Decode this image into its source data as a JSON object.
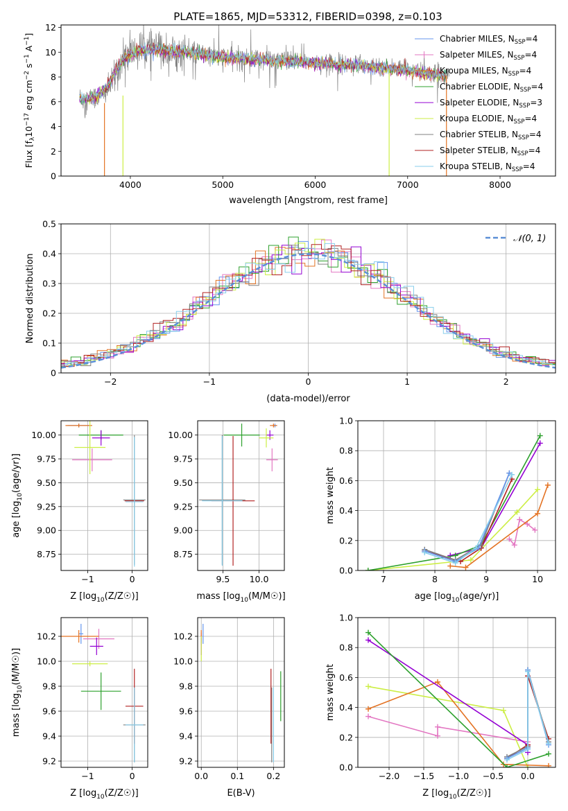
{
  "figure_title": "PLATE=1865, MJD=53312, FIBERID=0398, z=0.103",
  "colors": {
    "chabrier_miles": "#6495ed",
    "salpeter_miles": "#e377c2",
    "kroupa_miles": "#e37222",
    "chabrier_elodie": "#2ca02c",
    "salpeter_elodie": "#9400d3",
    "kroupa_elodie": "#ccee44",
    "chabrier_stelib": "#808080",
    "salpeter_stelib": "#b22222",
    "kroupa_stelib": "#87ceeb",
    "normal": "#5b8fd6"
  },
  "chart_data": [
    {
      "id": "spectrum",
      "type": "line",
      "title": "PLATE=1865, MJD=53312, FIBERID=0398, z=0.103",
      "xlabel": "wavelength [Angstrom, rest frame]",
      "ylabel": "Flux [f_λ 10^-17 erg cm^-2 s^-1 A^-1]",
      "xlim": [
        3250,
        8600
      ],
      "ylim": [
        0,
        12.2
      ],
      "xticks": [
        4000,
        5000,
        6000,
        7000,
        8000
      ],
      "yticks": [
        0,
        2,
        4,
        6,
        8,
        10,
        12
      ],
      "legend_position": "right",
      "series": [
        {
          "name": "Chabrier MILES, N_SSP=4",
          "label_main": "Chabrier MILES, N",
          "label_sub": "SSP",
          "label_end": "=4",
          "color_key": "chabrier_miles"
        },
        {
          "name": "Salpeter MILES, N_SSP=4",
          "label_main": "Salpeter MILES, N",
          "label_sub": "SSP",
          "label_end": "=4",
          "color_key": "salpeter_miles"
        },
        {
          "name": "Kroupa MILES, N_SSP=4",
          "label_main": "Kroupa MILES, N",
          "label_sub": "SSP",
          "label_end": "=4",
          "color_key": "kroupa_miles"
        },
        {
          "name": "Chabrier ELODIE, N_SSP=4",
          "label_main": "Chabrier ELODIE, N",
          "label_sub": "SSP",
          "label_end": "=4",
          "color_key": "chabrier_elodie"
        },
        {
          "name": "Salpeter ELODIE, N_SSP=3",
          "label_main": "Salpeter ELODIE, N",
          "label_sub": "SSP",
          "label_end": "=3",
          "color_key": "salpeter_elodie"
        },
        {
          "name": "Kroupa ELODIE, N_SSP=4",
          "label_main": "Kroupa ELODIE, N",
          "label_sub": "SSP",
          "label_end": "=4",
          "color_key": "kroupa_elodie"
        },
        {
          "name": "Chabrier STELIB, N_SSP=4",
          "label_main": "Chabrier STELIB, N",
          "label_sub": "SSP",
          "label_end": "=4",
          "color_key": "chabrier_stelib"
        },
        {
          "name": "Salpeter STELIB, N_SSP=4",
          "label_main": "Salpeter STELIB, N",
          "label_sub": "SSP",
          "label_end": "=4",
          "color_key": "salpeter_stelib"
        },
        {
          "name": "Kroupa STELIB, N_SSP=4",
          "label_main": "Kroupa STELIB, N",
          "label_sub": "SSP",
          "label_end": "=4",
          "color_key": "kroupa_stelib"
        }
      ],
      "observed_trend": {
        "x": [
          3450,
          3550,
          3650,
          3750,
          3800,
          3900,
          4000,
          4100,
          4200,
          4300,
          4400,
          4500,
          4700,
          5000,
          5500,
          6000,
          6500,
          7000,
          7400
        ],
        "y": [
          6.3,
          6.2,
          6.4,
          6.9,
          7.6,
          9.2,
          9.9,
          10.2,
          10.3,
          10.2,
          10.1,
          10.0,
          9.9,
          9.6,
          9.4,
          9.2,
          9.0,
          8.6,
          8.1
        ]
      },
      "model_trend": {
        "x": [
          3450,
          3600,
          3750,
          3850,
          3950,
          4100,
          4300,
          4600,
          5000,
          5500,
          6000,
          6500,
          7000,
          7400
        ],
        "y": [
          6.2,
          6.3,
          7.2,
          8.6,
          9.6,
          10.1,
          10.2,
          10.0,
          9.6,
          9.3,
          9.1,
          8.9,
          8.5,
          8.1
        ]
      },
      "model_x_range": [
        3450,
        7420
      ],
      "noisy_x_range": [
        3450,
        7450
      ],
      "drop_lines": [
        {
          "x": 3720,
          "y_top": 5.9,
          "color_key": "kroupa_miles"
        },
        {
          "x": 3920,
          "y_top": 6.5,
          "color_key": "kroupa_elodie"
        },
        {
          "x": 6800,
          "y_top": 8.6,
          "color_key": "kroupa_elodie"
        },
        {
          "x": 7420,
          "y_top": 8.1,
          "color_key": "kroupa_miles"
        }
      ]
    },
    {
      "id": "residuals",
      "type": "line",
      "xlabel": "(data-model)/error",
      "ylabel": "Normed distribution",
      "xlim": [
        -2.5,
        2.5
      ],
      "ylim": [
        0,
        0.5
      ],
      "xticks": [
        -2,
        -1,
        0,
        1,
        2
      ],
      "yticks": [
        0.0,
        0.1,
        0.2,
        0.3,
        0.4,
        0.5
      ],
      "grid": true,
      "bin_width": 0.1,
      "legend_position": "top-right",
      "normal_label": "𝒩(0, 1)",
      "normal_color_key": "normal",
      "histogram_color_keys": [
        "chabrier_miles",
        "salpeter_miles",
        "kroupa_miles",
        "chabrier_elodie",
        "salpeter_elodie",
        "kroupa_elodie",
        "chabrier_stelib",
        "salpeter_stelib",
        "kroupa_stelib"
      ]
    },
    {
      "id": "age_vs_z",
      "type": "scatter",
      "xlabel_main": "Z [log",
      "xlabel_sub": "10",
      "xlabel_end": "(Z/Z☉)]",
      "ylabel_main": "age  [log",
      "ylabel_sub": "10",
      "ylabel_end": "(age/yr)]",
      "xlim": [
        -1.6,
        0.35
      ],
      "ylim": [
        8.58,
        10.15
      ],
      "xticks": [
        -1,
        0
      ],
      "xtick_labels": [
        "−1",
        "0"
      ],
      "yticks": [
        8.75,
        9.0,
        9.25,
        9.5,
        9.75,
        10.0
      ],
      "ytick_labels": [
        "8.75",
        "9.00",
        "9.25",
        "9.50",
        "9.75",
        "10.00"
      ],
      "grid": true,
      "points": [
        {
          "c": "chabrier_miles",
          "x": -1.2,
          "y": 10.1,
          "xerr": 0.25,
          "yerr": 0.02
        },
        {
          "c": "salpeter_miles",
          "x": -0.9,
          "y": 9.74,
          "xerr": 0.45,
          "yerr": 0.12
        },
        {
          "c": "kroupa_miles",
          "x": -1.2,
          "y": 10.1,
          "xerr": 0.3,
          "yerr": 0.02
        },
        {
          "c": "chabrier_elodie",
          "x": -0.7,
          "y": 10.0,
          "xerr": 0.5,
          "yerr": 0.05
        },
        {
          "c": "salpeter_elodie",
          "x": -0.7,
          "y": 9.97,
          "xerr": 0.2,
          "yerr": 0.08
        },
        {
          "c": "kroupa_elodie",
          "x": -0.95,
          "y": 9.87,
          "xerr": 0.35,
          "yerr": 0.28
        },
        {
          "c": "chabrier_stelib",
          "x": 0.05,
          "y": 9.32,
          "xerr": 0.25,
          "yerr": 0.68
        },
        {
          "c": "salpeter_stelib",
          "x": 0.05,
          "y": 9.31,
          "xerr": 0.22,
          "yerr": 0.0
        },
        {
          "c": "kroupa_stelib",
          "x": 0.05,
          "y": 9.3,
          "xerr": 0.2,
          "yerr": 0.68
        }
      ]
    },
    {
      "id": "age_vs_mass",
      "type": "scatter",
      "xlabel_main": "mass [log",
      "xlabel_sub": "10",
      "xlabel_end": "(M/M☉)]",
      "xlim": [
        9.15,
        10.35
      ],
      "ylim": [
        8.58,
        10.15
      ],
      "xticks": [
        9.5,
        10.0
      ],
      "xtick_labels": [
        "9.5",
        "10.0"
      ],
      "yticks": [
        8.75,
        9.0,
        9.25,
        9.5,
        9.75,
        10.0
      ],
      "ytick_labels": [
        "8.75",
        "9.00",
        "9.25",
        "9.50",
        "9.75",
        "10.00"
      ],
      "grid": true,
      "points": [
        {
          "c": "chabrier_miles",
          "x": 10.22,
          "y": 10.1,
          "xerr": 0.03,
          "yerr": 0.02
        },
        {
          "c": "salpeter_miles",
          "x": 10.18,
          "y": 9.74,
          "xerr": 0.08,
          "yerr": 0.12
        },
        {
          "c": "kroupa_miles",
          "x": 10.2,
          "y": 10.1,
          "xerr": 0.05,
          "yerr": 0.02
        },
        {
          "c": "chabrier_elodie",
          "x": 9.76,
          "y": 10.0,
          "xerr": 0.25,
          "yerr": 0.12
        },
        {
          "c": "salpeter_elodie",
          "x": 10.15,
          "y": 10.0,
          "xerr": 0.05,
          "yerr": 0.05
        },
        {
          "c": "kroupa_elodie",
          "x": 10.1,
          "y": 9.97,
          "xerr": 0.1,
          "yerr": 0.1
        },
        {
          "c": "chabrier_stelib",
          "x": 9.49,
          "y": 9.32,
          "xerr": 0.32,
          "yerr": 0.68
        },
        {
          "c": "salpeter_stelib",
          "x": 9.64,
          "y": 9.31,
          "xerr": 0.3,
          "yerr": 0.68
        },
        {
          "c": "kroupa_stelib",
          "x": 9.49,
          "y": 9.31,
          "xerr": 0.28,
          "yerr": 0.68
        }
      ]
    },
    {
      "id": "weight_vs_age",
      "type": "line",
      "xlabel_main": "age  [log",
      "xlabel_sub": "10",
      "xlabel_end": "(age/yr)]",
      "ylabel": "mass weight",
      "xlim": [
        6.5,
        10.35
      ],
      "ylim": [
        0,
        1
      ],
      "xticks": [
        7,
        8,
        9,
        10
      ],
      "xtick_labels": [
        "7",
        "8",
        "9",
        "10"
      ],
      "yticks": [
        0.0,
        0.2,
        0.4,
        0.6,
        0.8,
        1.0
      ],
      "ytick_labels": [
        "0.0",
        "0.2",
        "0.4",
        "0.6",
        "0.8",
        "1.0"
      ],
      "grid": true,
      "series": [
        {
          "c": "salpeter_miles",
          "x": [
            9.45,
            9.55,
            9.65,
            9.8,
            9.95
          ],
          "y": [
            0.21,
            0.17,
            0.34,
            0.31,
            0.27
          ]
        },
        {
          "c": "kroupa_elodie",
          "x": [
            6.7,
            8.7,
            9.6,
            10.0
          ],
          "y": [
            0.0,
            0.07,
            0.39,
            0.54
          ]
        },
        {
          "c": "kroupa_miles",
          "x": [
            8.3,
            8.6,
            10.0,
            10.2
          ],
          "y": [
            0.03,
            0.02,
            0.38,
            0.57
          ]
        },
        {
          "c": "salpeter_elodie",
          "x": [
            8.3,
            8.9,
            10.05
          ],
          "y": [
            0.1,
            0.15,
            0.85
          ]
        },
        {
          "c": "chabrier_elodie",
          "x": [
            6.7,
            8.4,
            8.9,
            10.05
          ],
          "y": [
            0.0,
            0.1,
            0.17,
            0.9
          ]
        },
        {
          "c": "salpeter_stelib",
          "x": [
            7.8,
            8.5,
            8.9,
            9.5
          ],
          "y": [
            0.13,
            0.06,
            0.15,
            0.61
          ]
        },
        {
          "c": "chabrier_stelib",
          "x": [
            7.8,
            8.4,
            8.9,
            9.45
          ],
          "y": [
            0.14,
            0.07,
            0.17,
            0.65
          ]
        },
        {
          "c": "chabrier_miles",
          "x": [
            7.8,
            8.4,
            8.85,
            9.45
          ],
          "y": [
            0.13,
            0.06,
            0.15,
            0.65
          ]
        },
        {
          "c": "kroupa_stelib",
          "x": [
            7.8,
            8.4,
            8.8,
            9.5
          ],
          "y": [
            0.12,
            0.05,
            0.15,
            0.64
          ]
        }
      ]
    },
    {
      "id": "mass_vs_z",
      "type": "scatter",
      "xlabel_main": "Z [log",
      "xlabel_sub": "10",
      "xlabel_end": "(Z/Z☉)]",
      "ylabel_main": "mass [log",
      "ylabel_sub": "10",
      "ylabel_end": "(M/M☉)]",
      "xlim": [
        -1.6,
        0.35
      ],
      "ylim": [
        9.15,
        10.35
      ],
      "xticks": [
        -1,
        0
      ],
      "xtick_labels": [
        "−1",
        "0"
      ],
      "yticks": [
        9.2,
        9.4,
        9.6,
        9.8,
        10.0,
        10.2
      ],
      "ytick_labels": [
        "9.2",
        "9.4",
        "9.6",
        "9.8",
        "10.0",
        "10.2"
      ],
      "grid": true,
      "points": [
        {
          "c": "chabrier_miles",
          "x": -1.15,
          "y": 10.22,
          "xerr": 0.05,
          "yerr": 0.08
        },
        {
          "c": "salpeter_miles",
          "x": -0.75,
          "y": 10.18,
          "xerr": 0.35,
          "yerr": 0.08
        },
        {
          "c": "kroupa_miles",
          "x": -1.2,
          "y": 10.2,
          "xerr": 0.45,
          "yerr": 0.05
        },
        {
          "c": "chabrier_elodie",
          "x": -0.7,
          "y": 9.76,
          "xerr": 0.45,
          "yerr": 0.15
        },
        {
          "c": "salpeter_elodie",
          "x": -0.8,
          "y": 10.12,
          "xerr": 0.15,
          "yerr": 0.07
        },
        {
          "c": "kroupa_elodie",
          "x": -0.95,
          "y": 9.98,
          "xerr": 0.4,
          "yerr": 0.02
        },
        {
          "c": "chabrier_stelib",
          "x": 0.05,
          "y": 9.49,
          "xerr": 0.25,
          "yerr": 0.3
        },
        {
          "c": "salpeter_stelib",
          "x": 0.05,
          "y": 9.64,
          "xerr": 0.2,
          "yerr": 0.3
        },
        {
          "c": "kroupa_stelib",
          "x": 0.05,
          "y": 9.49,
          "xerr": 0.2,
          "yerr": 0.3
        }
      ]
    },
    {
      "id": "mass_vs_ebv",
      "type": "scatter",
      "xlabel": "E(B-V)",
      "xlim": [
        -0.01,
        0.23
      ],
      "ylim": [
        9.15,
        10.35
      ],
      "xticks": [
        0.0,
        0.1,
        0.2
      ],
      "xtick_labels": [
        "0.0",
        "0.1",
        "0.2"
      ],
      "yticks": [
        9.2,
        9.4,
        9.6,
        9.8,
        10.0,
        10.2
      ],
      "ytick_labels": [
        "9.2",
        "9.4",
        "9.6",
        "9.8",
        "10.0",
        "10.2"
      ],
      "grid": true,
      "points": [
        {
          "c": "chabrier_miles",
          "x": 0.005,
          "y": 10.22,
          "xerr": 0.0,
          "yerr": 0.08
        },
        {
          "c": "salpeter_miles",
          "x": 0.0,
          "y": 10.18,
          "xerr": 0.0,
          "yerr": 0.05
        },
        {
          "c": "kroupa_miles",
          "x": 0.0,
          "y": 10.2,
          "xerr": 0.0,
          "yerr": 0.05
        },
        {
          "c": "chabrier_elodie",
          "x": 0.22,
          "y": 9.72,
          "xerr": 0.0,
          "yerr": 0.2
        },
        {
          "c": "salpeter_elodie",
          "x": 0.0,
          "y": 10.12,
          "xerr": 0.0,
          "yerr": 0.07
        },
        {
          "c": "kroupa_elodie",
          "x": 0.0,
          "y": 10.1,
          "xerr": 0.0,
          "yerr": 0.1
        },
        {
          "c": "chabrier_stelib",
          "x": 0.195,
          "y": 9.49,
          "xerr": 0.0,
          "yerr": 0.3
        },
        {
          "c": "salpeter_stelib",
          "x": 0.193,
          "y": 9.64,
          "xerr": 0.0,
          "yerr": 0.3
        },
        {
          "c": "kroupa_stelib",
          "x": 0.2,
          "y": 9.49,
          "xerr": 0.0,
          "yerr": 0.3
        }
      ]
    },
    {
      "id": "weight_vs_z",
      "type": "line",
      "xlabel_main": "Z [log",
      "xlabel_sub": "10",
      "xlabel_end": "(Z/Z☉)]",
      "ylabel": "mass weight",
      "xlim": [
        -2.45,
        0.4
      ],
      "ylim": [
        0,
        1
      ],
      "xticks": [
        -2.0,
        -1.5,
        -1.0,
        -0.5,
        0.0
      ],
      "xtick_labels": [
        "−2.0",
        "−1.5",
        "−1.0",
        "−0.5",
        "0.0"
      ],
      "yticks": [
        0.0,
        0.2,
        0.4,
        0.6,
        0.8,
        1.0
      ],
      "ytick_labels": [
        "0.0",
        "0.2",
        "0.4",
        "0.6",
        "0.8",
        "1.0"
      ],
      "grid": true,
      "series": [
        {
          "c": "salpeter_miles",
          "x": [
            -2.3,
            -1.3,
            -1.3,
            0.0
          ],
          "y": [
            0.34,
            0.21,
            0.27,
            0.17
          ]
        },
        {
          "c": "kroupa_elodie",
          "x": [
            -2.3,
            -0.35,
            0.0
          ],
          "y": [
            0.54,
            0.38,
            0.0
          ]
        },
        {
          "c": "kroupa_miles",
          "x": [
            -2.3,
            -1.3,
            -0.35,
            0.3
          ],
          "y": [
            0.39,
            0.57,
            0.02,
            0.01
          ]
        },
        {
          "c": "salpeter_elodie",
          "x": [
            -2.3,
            0.0,
            0.0
          ],
          "y": [
            0.85,
            0.15,
            0.1
          ]
        },
        {
          "c": "chabrier_elodie",
          "x": [
            -2.3,
            -0.3,
            0.3
          ],
          "y": [
            0.9,
            0.0,
            0.09
          ]
        },
        {
          "c": "salpeter_stelib",
          "x": [
            -0.3,
            0.0,
            0.0,
            0.3
          ],
          "y": [
            0.06,
            0.15,
            0.61,
            0.19
          ]
        },
        {
          "c": "chabrier_stelib",
          "x": [
            -0.3,
            0.0,
            0.0,
            0.3
          ],
          "y": [
            0.07,
            0.14,
            0.65,
            0.17
          ]
        },
        {
          "c": "chabrier_miles",
          "x": [
            -0.3,
            0.0,
            0.0,
            0.3
          ],
          "y": [
            0.06,
            0.13,
            0.65,
            0.15
          ]
        },
        {
          "c": "kroupa_stelib",
          "x": [
            -0.3,
            0.0,
            0.0,
            0.3
          ],
          "y": [
            0.05,
            0.12,
            0.64,
            0.16
          ]
        }
      ]
    }
  ],
  "spectrum_ylabel_parts": {
    "a": "Flux [f",
    "b": "λ",
    "c": "10",
    "d": "−17",
    "e": " erg cm",
    "f": "−2",
    "g": " s",
    "h": "−1",
    "i": " A",
    "j": "−1",
    "k": "]"
  }
}
